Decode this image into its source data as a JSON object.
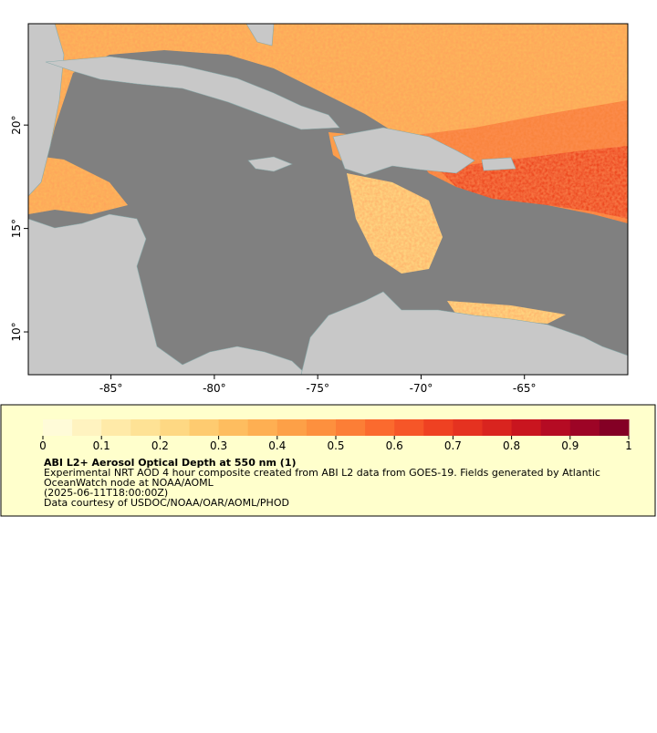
{
  "map": {
    "xlim": [
      -89,
      -60
    ],
    "ylim": [
      7.93,
      24.9
    ],
    "xticks": [
      {
        "value": -85,
        "label": "-85°"
      },
      {
        "value": -80,
        "label": "-80°"
      },
      {
        "value": -75,
        "label": "-75°"
      },
      {
        "value": -70,
        "label": "-70°"
      },
      {
        "value": -65,
        "label": "-65°"
      }
    ],
    "yticks": [
      {
        "value": 10,
        "label": "10°"
      },
      {
        "value": 15,
        "label": "15°"
      },
      {
        "value": 20,
        "label": "20°"
      }
    ]
  },
  "colorbar": {
    "lim": [
      0,
      1
    ],
    "ticks": [
      0,
      0.1,
      0.2,
      0.3,
      0.4,
      0.5,
      0.6,
      0.7,
      0.8,
      0.9,
      1
    ],
    "colors": [
      "#fffbd8",
      "#fff3c0",
      "#ffeaa8",
      "#fee295",
      "#fed883",
      "#fecb70",
      "#febd5f",
      "#feaf52",
      "#fda047",
      "#fd903e",
      "#fc7e36",
      "#fb6a2e",
      "#f65628",
      "#ef4122",
      "#e53220",
      "#d9241f",
      "#c9151f",
      "#b50b23",
      "#9d0426",
      "#840025"
    ]
  },
  "legend": {
    "title": "ABI L2+ Aerosol Optical Depth at 550 nm (1)",
    "lines": [
      "Experimental NRT AOD 4 hour composite created from ABI L2 data from GOES-19. Fields generated by Atlantic",
      "OceanWatch node at NOAA/AOML",
      "(2025-06-11T18:00:00Z)",
      "Data courtesy of USDOC/NOAA/OAR/AOML/PHOD"
    ]
  }
}
